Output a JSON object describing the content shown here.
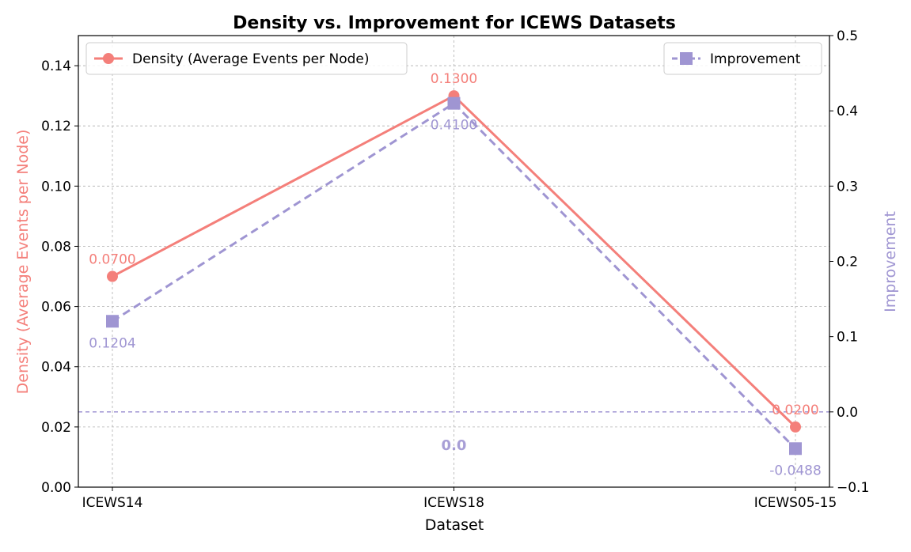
{
  "chart_data": {
    "type": "line",
    "title": "Density vs. Improvement for ICEWS Datasets",
    "xlabel": "Dataset",
    "categories": [
      "ICEWS14",
      "ICEWS18",
      "ICEWS05-15"
    ],
    "series": [
      {
        "name": "Density (Average Events per Node)",
        "axis": "left",
        "values": [
          0.07,
          0.13,
          0.02
        ],
        "labels": [
          "0.0700",
          "0.1300",
          "0.0200"
        ],
        "color": "#f47f7a",
        "marker": "circle",
        "line_style": "solid"
      },
      {
        "name": "Improvement",
        "axis": "right",
        "values": [
          0.1204,
          0.41,
          -0.0488
        ],
        "labels": [
          "0.1204",
          "0.4100",
          "-0.0488"
        ],
        "color": "#9f95d2",
        "marker": "square",
        "line_style": "dashed"
      }
    ],
    "left_axis": {
      "label": "Density (Average Events per Node)",
      "ylim": [
        0,
        0.15
      ],
      "ticks": [
        "0.00",
        "0.02",
        "0.04",
        "0.06",
        "0.08",
        "0.10",
        "0.12",
        "0.14"
      ],
      "color": "#f47f7a"
    },
    "right_axis": {
      "label": "Improvement",
      "ylim": [
        -0.1,
        0.5
      ],
      "ticks": [
        "−0.1",
        "0.0",
        "0.1",
        "0.2",
        "0.3",
        "0.4",
        "0.5"
      ],
      "color": "#9f95d2"
    },
    "reference_line": {
      "axis": "right",
      "value": 0.0,
      "label": "0.0"
    },
    "grid": true,
    "legends": [
      {
        "placement": "upper-left",
        "series_index": 0
      },
      {
        "placement": "upper-right",
        "series_index": 1
      }
    ]
  }
}
